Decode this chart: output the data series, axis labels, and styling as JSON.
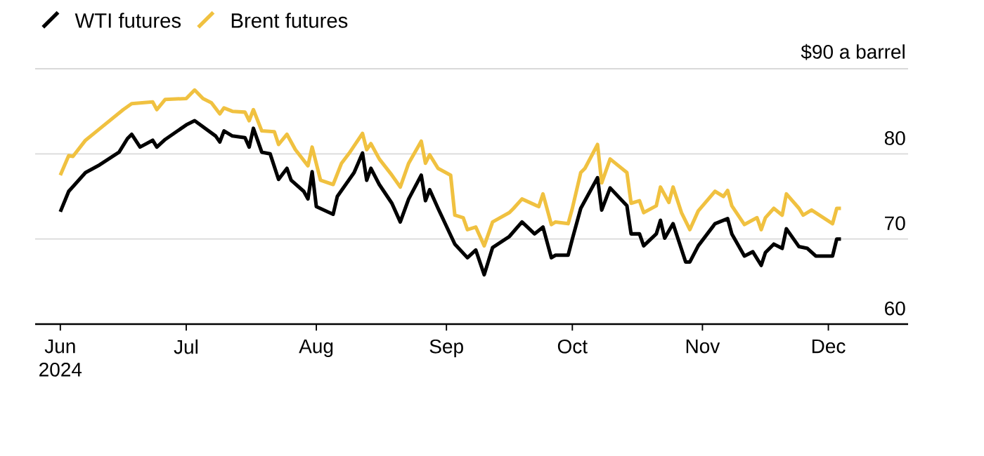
{
  "chart_data": {
    "type": "line",
    "xlim": [
      "2024-05-26",
      "2024-12-20"
    ],
    "xticks": [
      {
        "value": "2024-06-01",
        "label": "Jun 2024"
      },
      {
        "value": "2024-07-01",
        "label": "Jul"
      },
      {
        "value": "2024-08-01",
        "label": "Aug"
      },
      {
        "value": "2024-09-01",
        "label": "Sep"
      },
      {
        "value": "2024-10-01",
        "label": "Oct"
      },
      {
        "value": "2024-11-01",
        "label": "Nov"
      },
      {
        "value": "2024-12-01",
        "label": "Dec"
      }
    ],
    "ylim": [
      60,
      90
    ],
    "yticks": [
      60,
      70,
      80,
      {
        "value": 90,
        "label": "$90 a barrel"
      }
    ],
    "grid": "y",
    "legend": "top left",
    "series": [
      {
        "name": "WTI futures",
        "color": "#000000",
        "x": [
          "2024-06-01",
          "2024-06-03",
          "2024-06-07",
          "2024-06-10",
          "2024-06-15",
          "2024-06-17",
          "2024-06-18",
          "2024-06-20",
          "2024-06-23",
          "2024-06-24",
          "2024-06-26",
          "2024-07-01",
          "2024-07-03",
          "2024-07-08",
          "2024-07-09",
          "2024-07-10",
          "2024-07-12",
          "2024-07-15",
          "2024-07-16",
          "2024-07-17",
          "2024-07-19",
          "2024-07-21",
          "2024-07-23",
          "2024-07-25",
          "2024-07-26",
          "2024-07-29",
          "2024-07-30",
          "2024-07-31",
          "2024-08-01",
          "2024-08-05",
          "2024-08-06",
          "2024-08-10",
          "2024-08-12",
          "2024-08-13",
          "2024-08-14",
          "2024-08-16",
          "2024-08-19",
          "2024-08-21",
          "2024-08-23",
          "2024-08-26",
          "2024-08-27",
          "2024-08-28",
          "2024-08-30",
          "2024-09-03",
          "2024-09-06",
          "2024-09-08",
          "2024-09-10",
          "2024-09-12",
          "2024-09-16",
          "2024-09-19",
          "2024-09-22",
          "2024-09-24",
          "2024-09-26",
          "2024-09-27",
          "2024-09-30",
          "2024-10-01",
          "2024-10-03",
          "2024-10-07",
          "2024-10-08",
          "2024-10-10",
          "2024-10-14",
          "2024-10-15",
          "2024-10-17",
          "2024-10-18",
          "2024-10-21",
          "2024-10-22",
          "2024-10-23",
          "2024-10-25",
          "2024-10-28",
          "2024-10-29",
          "2024-10-31",
          "2024-11-04",
          "2024-11-07",
          "2024-11-08",
          "2024-11-11",
          "2024-11-13",
          "2024-11-15",
          "2024-11-16",
          "2024-11-18",
          "2024-11-20",
          "2024-11-21",
          "2024-11-24",
          "2024-11-26",
          "2024-11-28",
          "2024-12-02",
          "2024-12-03",
          "2024-12-04"
        ],
        "values": [
          73.2,
          75.6,
          77.8,
          78.6,
          80.2,
          81.8,
          82.3,
          80.8,
          81.6,
          80.8,
          81.7,
          83.4,
          83.9,
          82.1,
          81.4,
          82.7,
          82.1,
          81.9,
          80.8,
          83.0,
          80.2,
          80.0,
          77.0,
          78.3,
          76.9,
          75.6,
          74.7,
          77.9,
          73.8,
          72.9,
          75.0,
          77.8,
          80.1,
          76.9,
          78.3,
          76.4,
          74.2,
          72.0,
          74.7,
          77.5,
          74.5,
          75.8,
          73.6,
          69.4,
          67.8,
          68.7,
          65.8,
          69.0,
          70.3,
          72.0,
          70.6,
          71.4,
          67.8,
          68.1,
          68.1,
          70.0,
          73.6,
          77.2,
          73.4,
          76.0,
          73.9,
          70.6,
          70.6,
          69.2,
          70.6,
          72.2,
          70.1,
          71.8,
          67.3,
          67.3,
          69.2,
          71.8,
          72.4,
          70.6,
          68.0,
          68.5,
          66.9,
          68.4,
          69.4,
          68.9,
          71.2,
          69.1,
          68.9,
          68.0,
          68.0,
          70.0,
          70.0
        ]
      },
      {
        "name": "Brent futures",
        "color": "#f0c140",
        "x": [
          "2024-06-01",
          "2024-06-03",
          "2024-06-04",
          "2024-06-07",
          "2024-06-10",
          "2024-06-16",
          "2024-06-18",
          "2024-06-23",
          "2024-06-24",
          "2024-06-26",
          "2024-07-01",
          "2024-07-03",
          "2024-07-05",
          "2024-07-07",
          "2024-07-09",
          "2024-07-10",
          "2024-07-12",
          "2024-07-15",
          "2024-07-16",
          "2024-07-17",
          "2024-07-19",
          "2024-07-22",
          "2024-07-23",
          "2024-07-25",
          "2024-07-27",
          "2024-07-30",
          "2024-07-31",
          "2024-08-02",
          "2024-08-05",
          "2024-08-07",
          "2024-08-09",
          "2024-08-12",
          "2024-08-13",
          "2024-08-14",
          "2024-08-16",
          "2024-08-19",
          "2024-08-21",
          "2024-08-23",
          "2024-08-26",
          "2024-08-27",
          "2024-08-28",
          "2024-08-30",
          "2024-09-02",
          "2024-09-03",
          "2024-09-05",
          "2024-09-06",
          "2024-09-08",
          "2024-09-10",
          "2024-09-12",
          "2024-09-16",
          "2024-09-17",
          "2024-09-19",
          "2024-09-23",
          "2024-09-24",
          "2024-09-26",
          "2024-09-27",
          "2024-09-30",
          "2024-10-01",
          "2024-10-03",
          "2024-10-04",
          "2024-10-07",
          "2024-10-08",
          "2024-10-10",
          "2024-10-14",
          "2024-10-15",
          "2024-10-17",
          "2024-10-18",
          "2024-10-21",
          "2024-10-22",
          "2024-10-24",
          "2024-10-25",
          "2024-10-27",
          "2024-10-29",
          "2024-10-31",
          "2024-11-04",
          "2024-11-06",
          "2024-11-07",
          "2024-11-08",
          "2024-11-11",
          "2024-11-14",
          "2024-11-15",
          "2024-11-16",
          "2024-11-18",
          "2024-11-20",
          "2024-11-21",
          "2024-11-24",
          "2024-11-25",
          "2024-11-27",
          "2024-12-02",
          "2024-12-03",
          "2024-12-04"
        ],
        "values": [
          77.5,
          79.8,
          79.7,
          81.6,
          82.8,
          85.2,
          85.9,
          86.1,
          85.2,
          86.4,
          86.5,
          87.5,
          86.5,
          86.0,
          84.7,
          85.4,
          85.0,
          84.9,
          83.9,
          85.2,
          82.7,
          82.6,
          81.1,
          82.3,
          80.5,
          78.6,
          80.8,
          76.9,
          76.4,
          78.9,
          80.2,
          82.4,
          80.5,
          81.2,
          79.4,
          77.5,
          76.1,
          78.9,
          81.5,
          78.9,
          79.9,
          78.3,
          77.5,
          72.8,
          72.5,
          71.1,
          71.4,
          69.2,
          72.0,
          73.1,
          73.6,
          74.7,
          73.8,
          75.3,
          71.7,
          72.0,
          71.8,
          73.6,
          77.8,
          78.3,
          81.1,
          76.6,
          79.4,
          77.8,
          74.2,
          74.5,
          73.1,
          73.9,
          76.1,
          74.3,
          76.1,
          73.1,
          71.1,
          73.3,
          75.6,
          75.0,
          75.7,
          73.9,
          71.7,
          72.5,
          71.1,
          72.5,
          73.6,
          72.8,
          75.3,
          73.6,
          72.8,
          73.4,
          71.8,
          73.6,
          73.6
        ]
      }
    ]
  }
}
